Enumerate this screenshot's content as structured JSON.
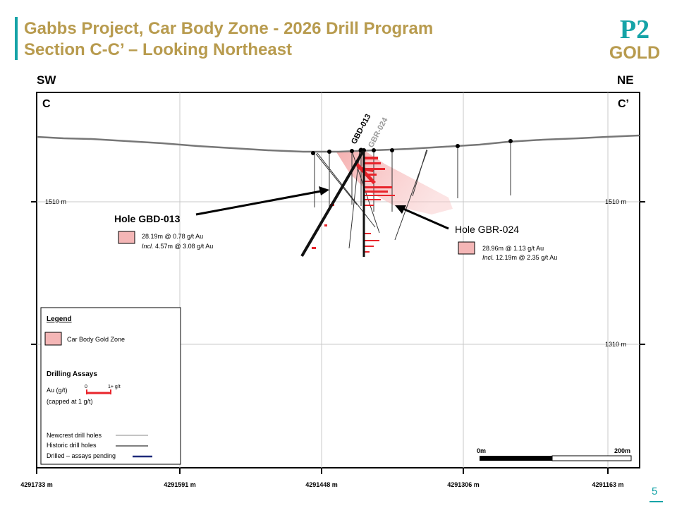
{
  "header": {
    "title_line1": "Gabbs Project, Car Body Zone - 2026 Drill Program",
    "title_line2": "Section C-C’ – Looking Northeast",
    "logo_top": "P2",
    "logo_bottom": "GOLD"
  },
  "section": {
    "dir_left": "SW",
    "dir_right": "NE",
    "label_left": "C",
    "label_right": "C’",
    "elev_upper": "1510 m",
    "elev_lower": "1310 m",
    "easting_ticks": [
      "4291733 m",
      "4291591 m",
      "4291448 m",
      "4291306 m",
      "4291163 m"
    ]
  },
  "holes": {
    "gbd_label": "GBD-013",
    "gbr_label": "GBR-024",
    "gbd_callout": "Hole GBD-013",
    "gbd_result": "28.19m @  0.78 g/t Au",
    "gbd_incl_prefix": "Incl.",
    "gbd_incl": " 4.57m @  3.08 g/t Au",
    "gbr_callout": "Hole GBR-024",
    "gbr_result": "28.96m @  1.13 g/t Au",
    "gbr_incl_prefix": "Incl.",
    "gbr_incl": " 12.19m @  2.35 g/t Au"
  },
  "legend": {
    "title": "Legend",
    "zone": "Car Body Gold Zone",
    "assays_title": "Drilling Assays",
    "au_label": "Au (g/t)",
    "scale_min": "0",
    "scale_max": "1+ g/t",
    "capped": "(capped at 1 g/t)",
    "newcrest": "Newcrest drill holes",
    "historic": "Historic drill holes",
    "pending": "Drilled – assays pending"
  },
  "scale_bar": {
    "start": "0m",
    "end": "200m"
  },
  "page_number": "5",
  "colors": {
    "brand_gold": "#b89b4e",
    "brand_teal": "#15a3a7",
    "zone_pink": "#f4b6b6",
    "assay_red": "#e8242b",
    "pending_blue": "#1f2a7a"
  }
}
